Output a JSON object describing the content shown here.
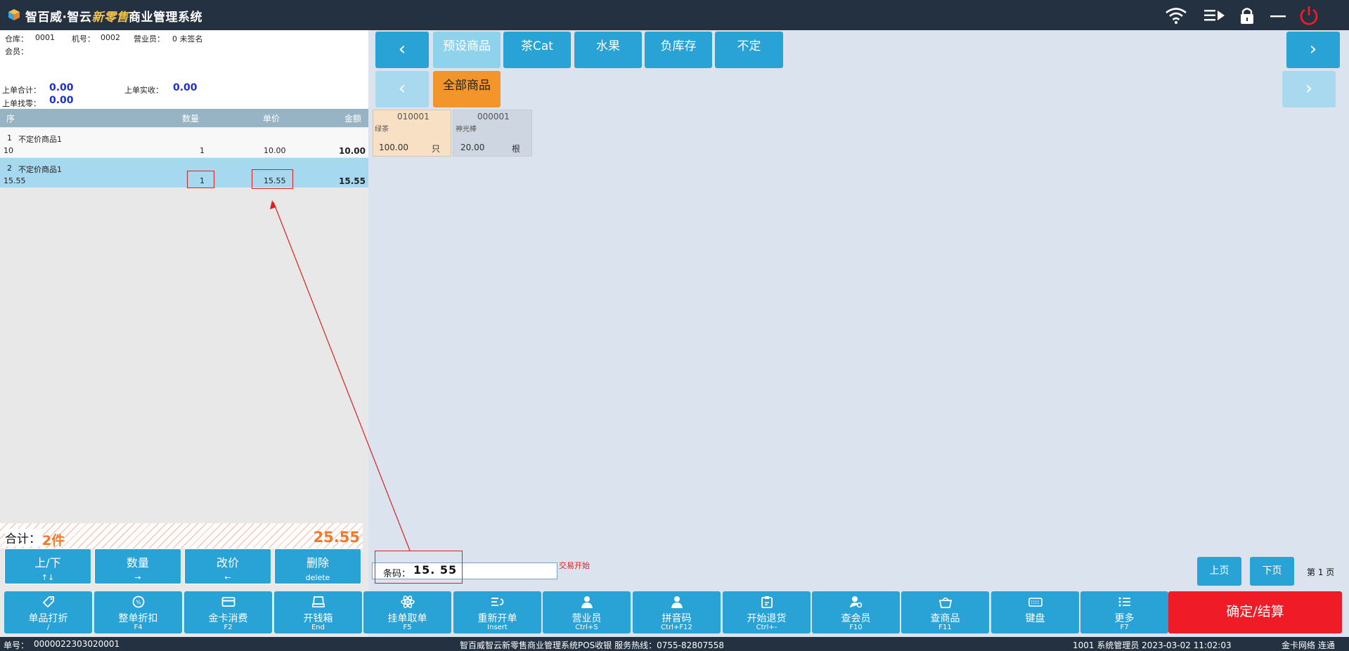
{
  "titlebar": {
    "brand": "智百威·智云",
    "brand_fancy": "新零售",
    "brand_suffix": "商业管理系统"
  },
  "info": {
    "warehouse_label": "仓库：",
    "warehouse": "0001",
    "machine_label": "机号：",
    "machine": "0002",
    "clerk_label": "营业员：",
    "clerk": "0 未签名",
    "member_label": "会员：",
    "last_total_label": "上单合计：",
    "last_total": "0.00",
    "last_paid_label": "上单实收：",
    "last_paid": "0.00",
    "last_change_label": "上单找零：",
    "last_change": "0.00"
  },
  "table": {
    "headers": [
      "序",
      "数量",
      "单价",
      "金额"
    ],
    "rows": [
      {
        "no": "1",
        "name": "不定价商品1",
        "code": "10",
        "qty": "1",
        "price": "10.00",
        "amount": "10.00"
      },
      {
        "no": "2",
        "name": "不定价商品1",
        "code": "15.55",
        "qty": "1",
        "price": "15.55",
        "amount": "15.55"
      }
    ]
  },
  "total": {
    "label": "合计：",
    "count": "2件",
    "sum": "25.55"
  },
  "ops": [
    {
      "label": "上/下",
      "key": "↑↓"
    },
    {
      "label": "数量",
      "key": "→"
    },
    {
      "label": "改价",
      "key": "←"
    },
    {
      "label": "删除",
      "key": "delete"
    }
  ],
  "categories": {
    "row1": [
      "预设商品",
      "茶Cat",
      "水果",
      "负库存",
      "不定"
    ],
    "row2": [
      "全部商品"
    ]
  },
  "products": [
    {
      "code": "010001",
      "name": "绿茶",
      "price": "100.00",
      "unit": "只"
    },
    {
      "code": "000001",
      "name": "神光棒",
      "price": "20.00",
      "unit": "根"
    }
  ],
  "barcode": {
    "label": "条码：",
    "value": "15. 55"
  },
  "trans_status": "交易开始",
  "pager": {
    "prev": "上页",
    "next": "下页",
    "page": "第 1 页"
  },
  "functions": [
    {
      "label": "单品打折",
      "key": "/",
      "icon": "tag-icon"
    },
    {
      "label": "整单折扣",
      "key": "F4",
      "icon": "discount-icon"
    },
    {
      "label": "金卡消费",
      "key": "F2",
      "icon": "card-icon"
    },
    {
      "label": "开钱箱",
      "key": "End",
      "icon": "cashbox-icon"
    },
    {
      "label": "挂单取单",
      "key": "F5",
      "icon": "atom-icon"
    },
    {
      "label": "重新开单",
      "key": "Insert",
      "icon": "reopen-icon"
    },
    {
      "label": "营业员",
      "key": "Ctrl+S",
      "icon": "clerk-icon"
    },
    {
      "label": "拼音码",
      "key": "Ctrl+F12",
      "icon": "pinyin-icon"
    },
    {
      "label": "开始退货",
      "key": "Ctrl+-",
      "icon": "return-icon"
    },
    {
      "label": "查会员",
      "key": "F10",
      "icon": "member-search-icon"
    },
    {
      "label": "查商品",
      "key": "F11",
      "icon": "basket-icon"
    },
    {
      "label": "键盘",
      "key": "",
      "icon": "keyboard-icon"
    },
    {
      "label": "更多",
      "key": "F7",
      "icon": "list-icon"
    }
  ],
  "confirm": "确定/结算",
  "status": {
    "order_label": "单号：",
    "order_no": "0000022303020001",
    "center": "智百威智云新零售商业管理系统POS收银    服务热线：0755-82807558",
    "right": "1001 系统管理员 2023-03-02 11:02:03",
    "network": "金卡网络 连通"
  },
  "colors": {
    "primary": "#29a3d6",
    "confirm": "#ef1b26",
    "accent": "#f07a2c",
    "titlebar": "#243140"
  }
}
